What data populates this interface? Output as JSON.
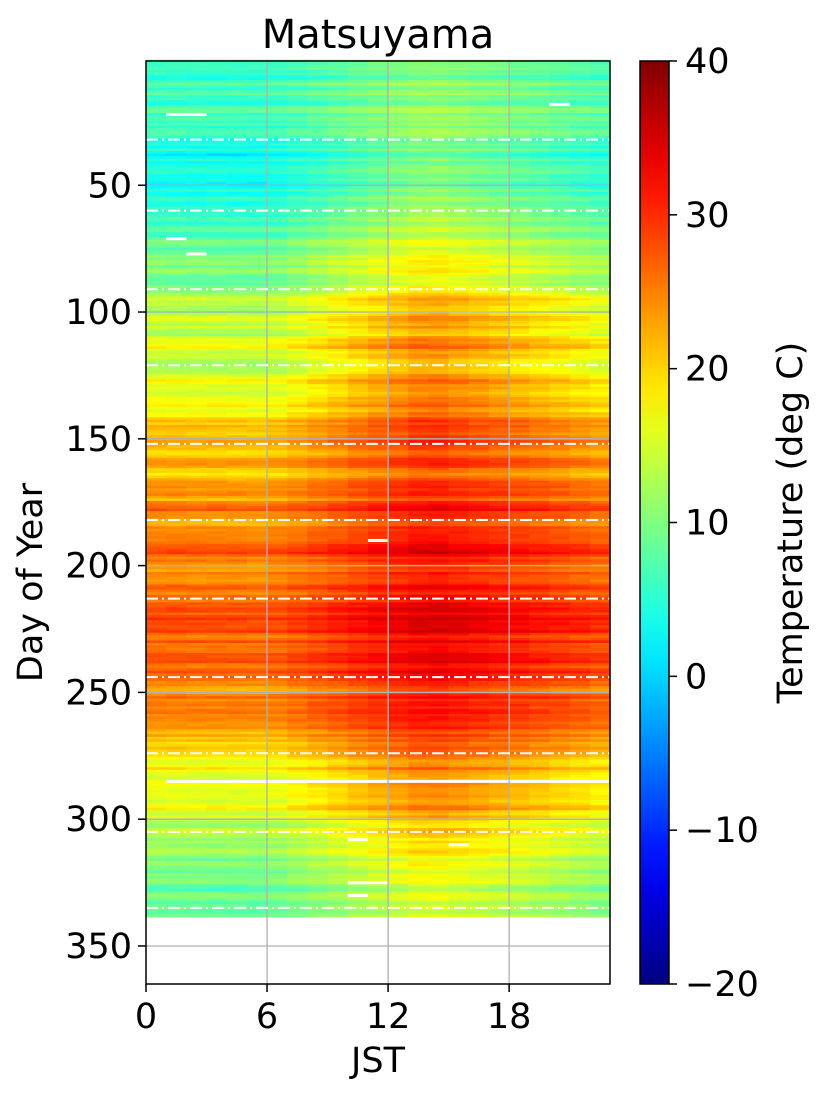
{
  "chart_data": {
    "type": "heatmap",
    "title": "Matsuyama",
    "xlabel": "JST",
    "ylabel": "Day of Year",
    "colorbar_label": "Temperature (deg C)",
    "colormap": "jet",
    "x_range": [
      0,
      23
    ],
    "y_range": [
      1,
      365
    ],
    "y_inverted": true,
    "x_ticks": [
      0,
      6,
      12,
      18
    ],
    "x_tick_labels": [
      "0",
      "6",
      "12",
      "18"
    ],
    "y_ticks": [
      50,
      100,
      150,
      200,
      250,
      300,
      350
    ],
    "y_tick_labels": [
      "50",
      "100",
      "150",
      "200",
      "250",
      "300",
      "350"
    ],
    "colorbar_range": [
      -20,
      40
    ],
    "colorbar_ticks": [
      -20,
      -10,
      0,
      10,
      20,
      30,
      40
    ],
    "colorbar_tick_labels": [
      "−20",
      "−10",
      "0",
      "10",
      "20",
      "30",
      "40"
    ],
    "data_day_range": [
      1,
      338
    ],
    "grid": true,
    "month_boundary_days": [
      32,
      60,
      91,
      121,
      152,
      182,
      213,
      244,
      274,
      305,
      335
    ],
    "missing_segments": [
      {
        "day": 22,
        "hour_start": 1,
        "hour_end": 3
      },
      {
        "day": 18,
        "hour_start": 20,
        "hour_end": 21
      },
      {
        "day": 71,
        "hour_start": 1,
        "hour_end": 2
      },
      {
        "day": 77,
        "hour_start": 2,
        "hour_end": 3
      },
      {
        "day": 190,
        "hour_start": 11,
        "hour_end": 12
      },
      {
        "day": 285,
        "hour_start": 1,
        "hour_end": 23
      },
      {
        "day": 308,
        "hour_start": 10,
        "hour_end": 11
      },
      {
        "day": 310,
        "hour_start": 15,
        "hour_end": 16
      },
      {
        "day": 325,
        "hour_start": 10,
        "hour_end": 12
      },
      {
        "day": 330,
        "hour_start": 10,
        "hour_end": 11
      }
    ],
    "approx_monthly_mean_temp": [
      {
        "day": 15,
        "night": 6,
        "afternoon": 11
      },
      {
        "day": 45,
        "night": 3,
        "afternoon": 10
      },
      {
        "day": 75,
        "night": 8,
        "afternoon": 16
      },
      {
        "day": 105,
        "night": 13,
        "afternoon": 23
      },
      {
        "day": 135,
        "night": 17,
        "afternoon": 27
      },
      {
        "day": 165,
        "night": 22,
        "afternoon": 29
      },
      {
        "day": 195,
        "night": 26,
        "afternoon": 33
      },
      {
        "day": 225,
        "night": 27,
        "afternoon": 34
      },
      {
        "day": 255,
        "night": 24,
        "afternoon": 31
      },
      {
        "day": 285,
        "night": 17,
        "afternoon": 26
      },
      {
        "day": 315,
        "night": 11,
        "afternoon": 19
      },
      {
        "day": 335,
        "night": 7,
        "afternoon": 14
      }
    ]
  }
}
